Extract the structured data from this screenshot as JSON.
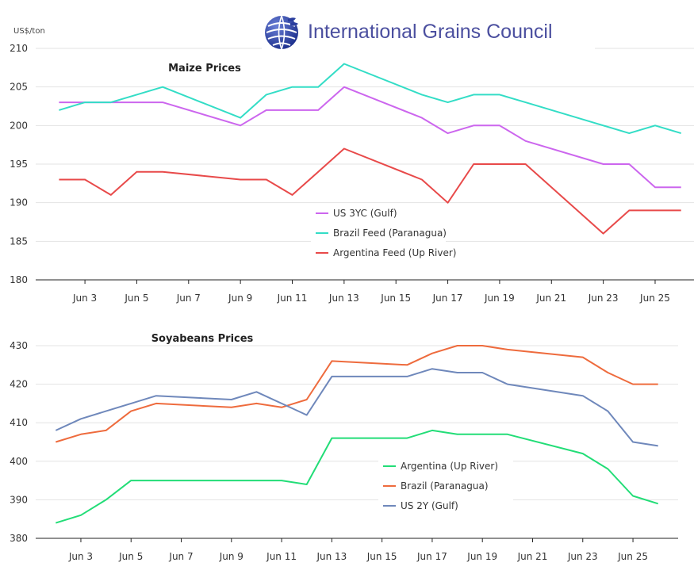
{
  "brand": {
    "title": "International Grains Council"
  },
  "unit_label": "US$/ton",
  "colors": {
    "grid": "#e3e3e3",
    "axis": "#222222",
    "us": "#cc66ee",
    "brazil_feed": "#33ddc6",
    "argentina_feed": "#e84a4a",
    "soy_argentina": "#22dd77",
    "soy_brazil": "#ee6b3d",
    "soy_us": "#6f88bb"
  },
  "chart_data": [
    {
      "type": "line",
      "title": "Maize Prices",
      "ylim": [
        180,
        210
      ],
      "yticks": [
        180,
        185,
        190,
        195,
        200,
        205,
        210
      ],
      "x": [
        "Jun 2",
        "Jun 3",
        "Jun 4",
        "Jun 5",
        "Jun 6",
        "Jun 9",
        "Jun 10",
        "Jun 11",
        "Jun 12",
        "Jun 13",
        "Jun 16",
        "Jun 17",
        "Jun 18",
        "Jun 19",
        "Jun 20",
        "Jun 23",
        "Jun 24",
        "Jun 25",
        "Jun 26"
      ],
      "xticks": [
        "Jun 3",
        "Jun 5",
        "Jun 7",
        "Jun 9",
        "Jun 11",
        "Jun 13",
        "Jun 15",
        "Jun 17",
        "Jun 19",
        "Jun 21",
        "Jun 23",
        "Jun 25"
      ],
      "series": [
        {
          "name": "US 3YC (Gulf)",
          "color_key": "us",
          "values": [
            203,
            203,
            203,
            203,
            203,
            200,
            202,
            202,
            202,
            205,
            201,
            199,
            200,
            200,
            198,
            195,
            195,
            192,
            192
          ]
        },
        {
          "name": "Brazil Feed (Paranagua)",
          "color_key": "brazil_feed",
          "values": [
            202,
            203,
            203,
            204,
            205,
            201,
            204,
            205,
            205,
            208,
            204,
            203,
            204,
            204,
            203,
            200,
            199,
            200,
            199
          ]
        },
        {
          "name": "Argentina Feed (Up River)",
          "color_key": "argentina_feed",
          "values": [
            193,
            193,
            191,
            194,
            194,
            193,
            193,
            191,
            194,
            197,
            193,
            190,
            195,
            195,
            195,
            186,
            189,
            189,
            189
          ]
        }
      ],
      "legend_position": "center"
    },
    {
      "type": "line",
      "title": "Soyabeans Prices",
      "ylim": [
        380,
        430
      ],
      "yticks": [
        380,
        390,
        400,
        410,
        420,
        430
      ],
      "x": [
        "Jun 2",
        "Jun 3",
        "Jun 4",
        "Jun 5",
        "Jun 6",
        "Jun 9",
        "Jun 10",
        "Jun 11",
        "Jun 12",
        "Jun 13",
        "Jun 16",
        "Jun 17",
        "Jun 18",
        "Jun 19",
        "Jun 20",
        "Jun 23",
        "Jun 24",
        "Jun 25",
        "Jun 26"
      ],
      "xticks": [
        "Jun 3",
        "Jun 5",
        "Jun 7",
        "Jun 9",
        "Jun 11",
        "Jun 13",
        "Jun 15",
        "Jun 17",
        "Jun 19",
        "Jun 21",
        "Jun 23",
        "Jun 25"
      ],
      "series": [
        {
          "name": "Argentina (Up River)",
          "color_key": "soy_argentina",
          "values": [
            384,
            386,
            390,
            395,
            395,
            395,
            395,
            395,
            394,
            406,
            406,
            408,
            407,
            407,
            407,
            402,
            398,
            391,
            389
          ]
        },
        {
          "name": "Brazil (Paranagua)",
          "color_key": "soy_brazil",
          "values": [
            405,
            407,
            408,
            413,
            415,
            414,
            415,
            414,
            416,
            426,
            425,
            428,
            430,
            430,
            429,
            427,
            423,
            420,
            420
          ]
        },
        {
          "name": "US 2Y (Gulf)",
          "color_key": "soy_us",
          "values": [
            408,
            411,
            413,
            415,
            417,
            416,
            418,
            415,
            412,
            422,
            422,
            424,
            423,
            423,
            420,
            417,
            413,
            405,
            404
          ]
        }
      ],
      "legend_position": "bottom-center"
    }
  ]
}
